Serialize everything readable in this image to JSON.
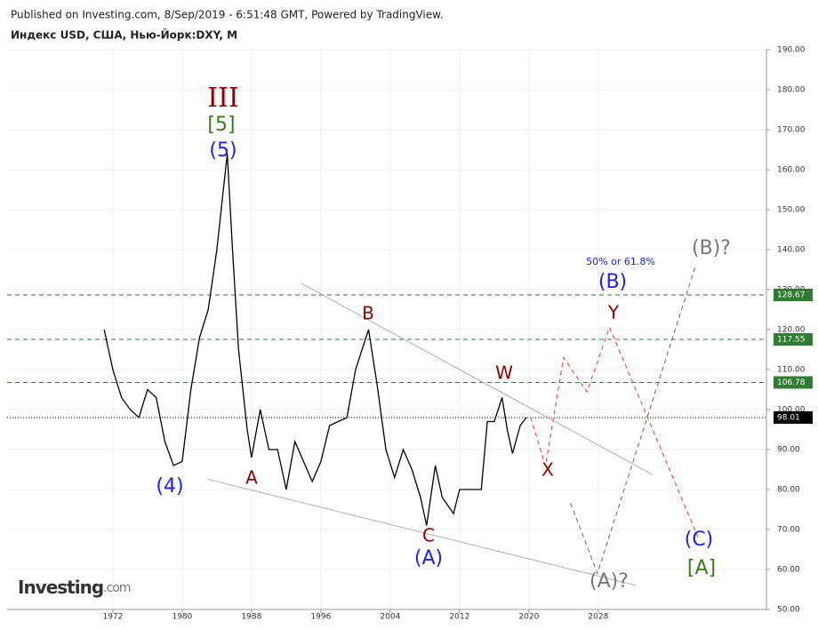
{
  "header": {
    "published": "Published on Investing.com, 8/Sep/2019 - 6:51:48 GMT, Powered by TradingView.",
    "symbol": "Индекс USD, США, Нью-Йорк:DXY, M",
    "logo": "Investing",
    "logo_suffix": ".com"
  },
  "chart_data": {
    "type": "line",
    "xlim": [
      1959.8,
      2047.4
    ],
    "ylim": [
      50,
      190
    ],
    "xticks": [
      1972,
      1980,
      1988,
      1996,
      2004,
      2012,
      2020,
      2028
    ],
    "yticks": [
      {
        "value": 50,
        "label": "50.00"
      },
      {
        "value": 60,
        "label": "60.00"
      },
      {
        "value": 70,
        "label": "70.00"
      },
      {
        "value": 80,
        "label": "80.00"
      },
      {
        "value": 90,
        "label": "90.00"
      },
      {
        "value": 100,
        "label": "100.00"
      },
      {
        "value": 110,
        "label": "110.00"
      },
      {
        "value": 120,
        "label": "120.00"
      },
      {
        "value": 130,
        "label": "130.00"
      },
      {
        "value": 140,
        "label": "140.00"
      },
      {
        "value": 150,
        "label": "150.00"
      },
      {
        "value": 160,
        "label": "160.00"
      },
      {
        "value": 170,
        "label": "170.00"
      },
      {
        "value": 180,
        "label": "180.00"
      },
      {
        "value": 190,
        "label": "190.00"
      }
    ],
    "grid": true,
    "series": [
      {
        "color": "#000000",
        "dash": "solid",
        "x": [
          1971.0,
          1972,
          1973,
          1974,
          1975,
          1976,
          1977,
          1978,
          1979,
          1980,
          1981,
          1982,
          1983,
          1984,
          1985.2,
          1985.8,
          1986.5,
          1987.5,
          1988,
          1989,
          1990,
          1991,
          1992,
          1993,
          1994,
          1995,
          1996,
          1997,
          1998,
          1999,
          2000,
          2001.5,
          2002.5,
          2003.5,
          2004.5,
          2005.5,
          2006.5,
          2007.5,
          2008.2,
          2009.2,
          2010,
          2011.3,
          2012,
          2013,
          2014.5,
          2015.2,
          2016,
          2016.9,
          2017.5,
          2018.1,
          2019.0,
          2019.7
        ],
        "values": [
          120,
          110,
          103,
          100,
          98,
          105,
          103,
          92,
          86,
          87,
          105,
          118,
          125,
          140,
          164,
          140,
          115,
          95,
          88,
          100,
          90,
          90,
          80,
          92,
          87,
          82,
          87,
          96,
          97,
          98,
          110,
          120,
          106,
          90,
          83,
          90,
          85,
          78,
          71,
          86,
          78,
          74,
          80,
          80,
          80,
          97,
          97,
          103,
          95,
          89,
          96,
          98
        ]
      },
      {
        "color": "#e53935",
        "dash": "dashed",
        "x": [
          2020.2,
          2021.9,
          2024,
          2026.7,
          2029.3,
          2039.5
        ],
        "values": [
          98.1,
          85.8,
          113,
          104.4,
          120.6,
          68.1
        ]
      },
      {
        "color": "#666666",
        "dash": "dashed",
        "x": [
          2024.8,
          2027.9,
          2039.2
        ],
        "values": [
          76.6,
          59,
          135.8
        ]
      },
      {
        "color": "#b0b0b0",
        "dash": "solid",
        "x": [
          1993.8,
          2034.2
        ],
        "values": [
          131.5,
          83.8
        ]
      },
      {
        "color": "#b0b0b0",
        "dash": "solid",
        "x": [
          1982.9,
          2032.4
        ],
        "values": [
          82.6,
          56
        ]
      }
    ],
    "levels": [
      {
        "value": 128.67,
        "color": "#2e7d32",
        "dash": "dashed"
      },
      {
        "value": 117.55,
        "color": "#2e7d32",
        "dash": "dashed"
      },
      {
        "value": 106.78,
        "color": "#2e7d32",
        "dash": "dashed"
      },
      {
        "value": 98.01,
        "color": "#000000",
        "dash": "dotted"
      }
    ],
    "annotations": [
      "III",
      "[5]",
      "(5)",
      "(4)",
      "A",
      "B",
      "C",
      "(A)",
      "W",
      "X",
      "Y",
      "(B)",
      "50% or 61.8%",
      "(B)?",
      "(A)?",
      "(C)",
      "[A]"
    ]
  }
}
